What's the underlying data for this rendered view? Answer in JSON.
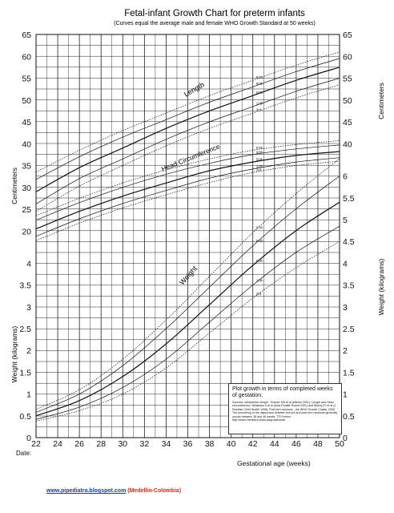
{
  "chart_data": {
    "type": "line",
    "title": "Fetal-infant Growth Chart for preterm infants",
    "subtitle": "(Curves equal the average male and female WHO Growth Standard at 50 weeks)",
    "xlabel": "Gestational age (weeks)",
    "ylabel_left_top": "Centimeters",
    "ylabel_left_bottom": "Weight (kilograms)",
    "ylabel_right_top": "Centimeters",
    "ylabel_right_bottom": "Weight (kilograms)",
    "xlim": [
      22,
      50
    ],
    "x_ticks": [
      "22",
      "24",
      "26",
      "28",
      "30",
      "32",
      "34",
      "36",
      "38",
      "40",
      "42",
      "44",
      "46",
      "48",
      "50"
    ],
    "cm_ticks": [
      "65",
      "60",
      "55",
      "50",
      "45",
      "40",
      "35",
      "30",
      "25",
      "20"
    ],
    "kg_left_ticks": [
      "4",
      "3.5",
      "3",
      "2.5",
      "2",
      "1.5",
      "1",
      "0.5",
      "0"
    ],
    "kg_right_ticks": [
      "6",
      "5.5",
      "5",
      "4.5",
      "4",
      "3.5",
      "3",
      "2.5",
      "2",
      "1.5",
      "1",
      "0.5",
      "0"
    ],
    "curve_labels": {
      "length": "Length",
      "head": "Head Circumference",
      "weight": "Weight"
    },
    "percentile_labels": [
      "97th",
      "90th",
      "50th",
      "10th",
      "3rd"
    ],
    "grid": true,
    "series": [
      {
        "group": "length",
        "percentile": "97th",
        "x": [
          22,
          26,
          30,
          34,
          38,
          42,
          46,
          50
        ],
        "values": [
          33.5,
          38.5,
          43,
          47,
          51,
          54.5,
          58,
          61
        ]
      },
      {
        "group": "length",
        "percentile": "90th",
        "x": [
          22,
          26,
          30,
          34,
          38,
          42,
          46,
          50
        ],
        "values": [
          31.8,
          37,
          41.5,
          45.5,
          49.5,
          53,
          56.5,
          59.5
        ]
      },
      {
        "group": "length",
        "percentile": "50th",
        "x": [
          22,
          26,
          30,
          34,
          38,
          42,
          46,
          50
        ],
        "values": [
          29,
          34.5,
          39,
          43.5,
          47.5,
          51,
          54.5,
          57.5
        ]
      },
      {
        "group": "length",
        "percentile": "10th",
        "x": [
          22,
          26,
          30,
          34,
          38,
          42,
          46,
          50
        ],
        "values": [
          26.2,
          32,
          36.5,
          41,
          45,
          48.5,
          52,
          55
        ]
      },
      {
        "group": "length",
        "percentile": "3rd",
        "x": [
          22,
          26,
          30,
          34,
          38,
          42,
          46,
          50
        ],
        "values": [
          24.5,
          30.3,
          35,
          39.5,
          43.5,
          47,
          50.5,
          53.5
        ]
      },
      {
        "group": "head",
        "percentile": "97th",
        "x": [
          22,
          26,
          30,
          34,
          38,
          42,
          46,
          50
        ],
        "values": [
          23.5,
          27.5,
          31,
          34,
          36.5,
          38.5,
          39.8,
          40.7
        ]
      },
      {
        "group": "head",
        "percentile": "90th",
        "x": [
          22,
          26,
          30,
          34,
          38,
          42,
          46,
          50
        ],
        "values": [
          22.5,
          26.5,
          30,
          33,
          35.5,
          37.5,
          38.8,
          39.7
        ]
      },
      {
        "group": "head",
        "percentile": "50th",
        "x": [
          22,
          26,
          30,
          34,
          38,
          42,
          46,
          50
        ],
        "values": [
          20.5,
          24.5,
          28,
          31,
          33.8,
          35.8,
          37.3,
          38.2
        ]
      },
      {
        "group": "head",
        "percentile": "10th",
        "x": [
          22,
          26,
          30,
          34,
          38,
          42,
          46,
          50
        ],
        "values": [
          18.8,
          22.8,
          26.3,
          29.3,
          32.1,
          34.2,
          35.8,
          36.8
        ]
      },
      {
        "group": "head",
        "percentile": "3rd",
        "x": [
          22,
          26,
          30,
          34,
          38,
          42,
          46,
          50
        ],
        "values": [
          17.8,
          21.8,
          25.3,
          28.3,
          31.1,
          33.4,
          35,
          36
        ]
      },
      {
        "group": "weight",
        "percentile": "97th",
        "x": [
          22,
          26,
          30,
          34,
          38,
          42,
          46,
          50
        ],
        "values": [
          0.65,
          1.1,
          1.8,
          2.7,
          3.7,
          4.7,
          5.6,
          6.4
        ]
      },
      {
        "group": "weight",
        "percentile": "90th",
        "x": [
          22,
          26,
          30,
          34,
          38,
          42,
          46,
          50
        ],
        "values": [
          0.58,
          1.0,
          1.65,
          2.5,
          3.45,
          4.4,
          5.25,
          6.0
        ]
      },
      {
        "group": "weight",
        "percentile": "50th",
        "x": [
          22,
          26,
          30,
          34,
          38,
          42,
          46,
          50
        ],
        "values": [
          0.5,
          0.85,
          1.4,
          2.15,
          3.05,
          3.95,
          4.75,
          5.4
        ]
      },
      {
        "group": "weight",
        "percentile": "10th",
        "x": [
          22,
          26,
          30,
          34,
          38,
          42,
          46,
          50
        ],
        "values": [
          0.42,
          0.7,
          1.15,
          1.8,
          2.65,
          3.5,
          4.25,
          4.85
        ]
      },
      {
        "group": "weight",
        "percentile": "3rd",
        "x": [
          22,
          26,
          30,
          34,
          38,
          42,
          46,
          50
        ],
        "values": [
          0.38,
          0.62,
          1.0,
          1.6,
          2.4,
          3.2,
          3.9,
          4.5
        ]
      }
    ]
  },
  "note": {
    "main": "Plot growth in terms of completed weeks of gestation.",
    "sources": "Sources: Intrauterine weight - Kramer MS et al (effekto 2001); Length and Head circumference: Niklasson A et al (Acta Pediatr Scand 1991) and Beeby PJ et al (J Paediatr Child Health 1996); Post term sections - the WHO Growth Charts, 2006. The smoothing of the disjunction between the pre and post term sections generally occurs between 38 and 46 weeks. T.R.Fenton http://www.members.shaw.ca/growthchart"
  },
  "footer": {
    "date_label": "Date:",
    "website": "www.pipediatra.blogspot.com",
    "location": "(Medellin-Colombia)"
  }
}
